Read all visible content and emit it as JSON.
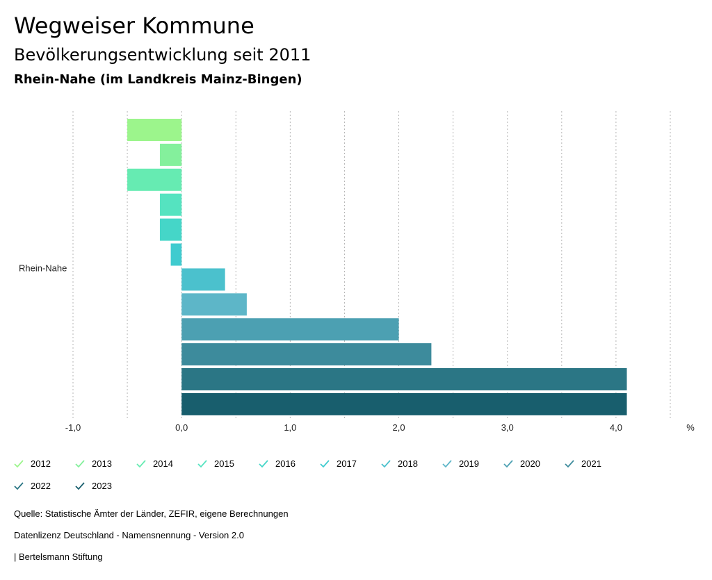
{
  "header": {
    "title": "Wegweiser Kommune",
    "subtitle": "Bevölkerungsentwicklung seit 2011",
    "region": "Rhein-Nahe (im Landkreis Mainz-Bingen)"
  },
  "chart_data": {
    "type": "bar",
    "orientation": "horizontal",
    "categories": [
      "Rhein-Nahe"
    ],
    "series": [
      {
        "name": "2012",
        "values": [
          -0.5
        ],
        "color": "#9cf58c"
      },
      {
        "name": "2013",
        "values": [
          -0.2
        ],
        "color": "#84f09c"
      },
      {
        "name": "2014",
        "values": [
          -0.5
        ],
        "color": "#66ebb2"
      },
      {
        "name": "2015",
        "values": [
          -0.2
        ],
        "color": "#55e3c0"
      },
      {
        "name": "2016",
        "values": [
          -0.2
        ],
        "color": "#45d6c8"
      },
      {
        "name": "2017",
        "values": [
          -0.1
        ],
        "color": "#3fcbcf"
      },
      {
        "name": "2018",
        "values": [
          0.4
        ],
        "color": "#4bc1cd"
      },
      {
        "name": "2019",
        "values": [
          0.6
        ],
        "color": "#5db6c8"
      },
      {
        "name": "2020",
        "values": [
          2.0
        ],
        "color": "#4ca0b2"
      },
      {
        "name": "2021",
        "values": [
          2.3
        ],
        "color": "#3d8b9c"
      },
      {
        "name": "2022",
        "values": [
          4.1
        ],
        "color": "#2b7685"
      },
      {
        "name": "2023",
        "values": [
          4.1
        ],
        "color": "#185e6d"
      }
    ],
    "xlim": [
      -1.0,
      4.5
    ],
    "xticks": [
      {
        "value": -1.0,
        "label": "-1,0"
      },
      {
        "value": 0.0,
        "label": "0,0"
      },
      {
        "value": 1.0,
        "label": "1,0"
      },
      {
        "value": 2.0,
        "label": "2,0"
      },
      {
        "value": 3.0,
        "label": "3,0"
      },
      {
        "value": 4.0,
        "label": "4,0"
      }
    ],
    "gridlines": [
      -1.0,
      -0.5,
      0.0,
      0.5,
      1.0,
      1.5,
      2.0,
      2.5,
      3.0,
      3.5,
      4.0,
      4.5
    ],
    "xunit": "%",
    "legend_position": "bottom"
  },
  "footer": {
    "source": "Quelle: Statistische Ämter der Länder, ZEFIR, eigene Berechnungen",
    "license": "Datenlizenz Deutschland - Namensnennung - Version 2.0",
    "publisher": "| Bertelsmann Stiftung"
  }
}
